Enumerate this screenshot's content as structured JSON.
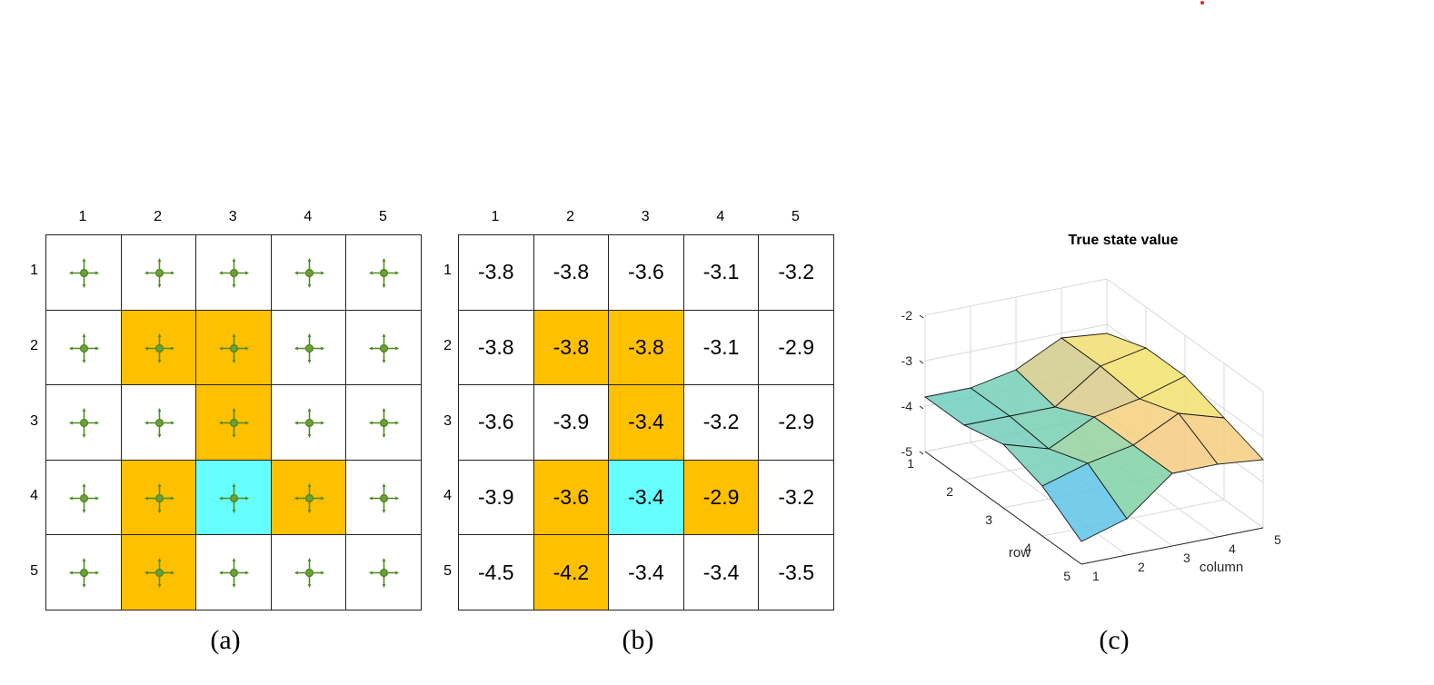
{
  "panel_a": {
    "columns": [
      "1",
      "2",
      "3",
      "4",
      "5"
    ],
    "rows": [
      "1",
      "2",
      "3",
      "4",
      "5"
    ],
    "cell_types": [
      [
        "white",
        "white",
        "white",
        "white",
        "white"
      ],
      [
        "white",
        "forbidden",
        "forbidden",
        "white",
        "white"
      ],
      [
        "white",
        "white",
        "forbidden",
        "white",
        "white"
      ],
      [
        "white",
        "forbidden",
        "target",
        "forbidden",
        "white"
      ],
      [
        "white",
        "forbidden",
        "white",
        "white",
        "white"
      ]
    ],
    "cell_icon": "policy-arrows-icon",
    "caption": "(a)"
  },
  "panel_b": {
    "columns": [
      "1",
      "2",
      "3",
      "4",
      "5"
    ],
    "rows": [
      "1",
      "2",
      "3",
      "4",
      "5"
    ],
    "values": [
      [
        "-3.8",
        "-3.8",
        "-3.6",
        "-3.1",
        "-3.2"
      ],
      [
        "-3.8",
        "-3.8",
        "-3.8",
        "-3.1",
        "-2.9"
      ],
      [
        "-3.6",
        "-3.9",
        "-3.4",
        "-3.2",
        "-2.9"
      ],
      [
        "-3.9",
        "-3.6",
        "-3.4",
        "-2.9",
        "-3.2"
      ],
      [
        "-4.5",
        "-4.2",
        "-3.4",
        "-3.4",
        "-3.5"
      ]
    ],
    "caption": "(b)"
  },
  "colors": {
    "forbidden": "#ffc000",
    "target": "#66ffff",
    "arrow": "#4f8a1e",
    "marker": "#e3262b"
  },
  "chart_data": {
    "type": "surface",
    "title": "True state value",
    "xlabel": "column",
    "ylabel": "row",
    "zlabel": "",
    "x_ticks": [
      "1",
      "2",
      "3",
      "4",
      "5"
    ],
    "y_ticks": [
      "1",
      "2",
      "3",
      "4",
      "5"
    ],
    "z_ticks": [
      "-2",
      "-3",
      "-4",
      "-5"
    ],
    "zlim": [
      -5,
      -2
    ],
    "grid": true,
    "z": [
      [
        -3.8,
        -3.8,
        -3.6,
        -3.1,
        -3.2
      ],
      [
        -3.8,
        -3.8,
        -3.8,
        -3.1,
        -2.9
      ],
      [
        -3.6,
        -3.9,
        -3.4,
        -3.2,
        -2.9
      ],
      [
        -3.9,
        -3.6,
        -3.4,
        -2.9,
        -3.2
      ],
      [
        -4.5,
        -4.2,
        -3.4,
        -3.4,
        -3.5
      ]
    ]
  },
  "panel_c": {
    "caption": "(c)"
  }
}
